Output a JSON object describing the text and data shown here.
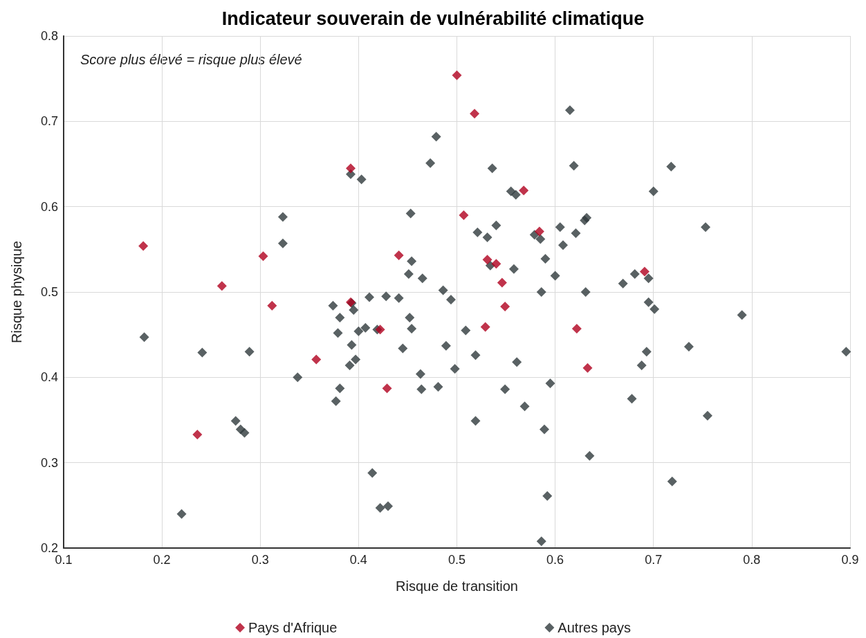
{
  "chart_data": {
    "type": "scatter",
    "title": "Indicateur souverain de vulnérabilité climatique",
    "xlabel": "Risque de transition",
    "ylabel": "Risque physique",
    "annotations": [
      "Score plus élevé = risque plus élevé"
    ],
    "xlim": [
      0.1,
      0.9
    ],
    "xticks": [
      0.1,
      0.2,
      0.3,
      0.4,
      0.5,
      0.6,
      0.7,
      0.8,
      0.9
    ],
    "ylim": [
      0.2,
      0.8
    ],
    "yticks": [
      0.2,
      0.3,
      0.4,
      0.5,
      0.6,
      0.7,
      0.8
    ],
    "grid": true,
    "legend": "bottom",
    "marker": "diamond",
    "series": [
      {
        "name": "Pays d'Afrique",
        "color": "#b0001e",
        "x": [
          0.181,
          0.261,
          0.303,
          0.312,
          0.236,
          0.357,
          0.392,
          0.392,
          0.422,
          0.429,
          0.441,
          0.5,
          0.518,
          0.507,
          0.568,
          0.584,
          0.531,
          0.54,
          0.546,
          0.549,
          0.529,
          0.622,
          0.633,
          0.691
        ],
        "values": [
          0.554,
          0.507,
          0.542,
          0.484,
          0.333,
          0.421,
          0.645,
          0.488,
          0.456,
          0.387,
          0.543,
          0.754,
          0.709,
          0.59,
          0.619,
          0.571,
          0.538,
          0.533,
          0.511,
          0.483,
          0.459,
          0.457,
          0.411,
          0.524
        ]
      },
      {
        "name": "Autres pays",
        "color": "#2f3a3c",
        "x": [
          0.182,
          0.22,
          0.241,
          0.289,
          0.275,
          0.28,
          0.284,
          0.338,
          0.323,
          0.323,
          0.374,
          0.377,
          0.379,
          0.381,
          0.381,
          0.392,
          0.403,
          0.393,
          0.395,
          0.393,
          0.391,
          0.397,
          0.4,
          0.407,
          0.411,
          0.419,
          0.414,
          0.422,
          0.43,
          0.428,
          0.441,
          0.445,
          0.453,
          0.451,
          0.454,
          0.452,
          0.454,
          0.463,
          0.464,
          0.465,
          0.473,
          0.479,
          0.481,
          0.486,
          0.489,
          0.494,
          0.498,
          0.509,
          0.519,
          0.519,
          0.521,
          0.531,
          0.534,
          0.536,
          0.54,
          0.549,
          0.555,
          0.558,
          0.56,
          0.561,
          0.569,
          0.579,
          0.585,
          0.586,
          0.586,
          0.589,
          0.59,
          0.592,
          0.595,
          0.6,
          0.605,
          0.608,
          0.615,
          0.619,
          0.621,
          0.63,
          0.632,
          0.631,
          0.635,
          0.669,
          0.678,
          0.681,
          0.688,
          0.693,
          0.695,
          0.695,
          0.7,
          0.701,
          0.718,
          0.719,
          0.736,
          0.753,
          0.755,
          0.79,
          0.896
        ],
        "values": [
          0.447,
          0.24,
          0.429,
          0.43,
          0.349,
          0.339,
          0.335,
          0.4,
          0.588,
          0.557,
          0.484,
          0.372,
          0.452,
          0.47,
          0.387,
          0.638,
          0.632,
          0.487,
          0.479,
          0.438,
          0.414,
          0.421,
          0.454,
          0.458,
          0.494,
          0.456,
          0.288,
          0.247,
          0.249,
          0.495,
          0.493,
          0.434,
          0.592,
          0.521,
          0.536,
          0.47,
          0.457,
          0.404,
          0.386,
          0.516,
          0.651,
          0.682,
          0.389,
          0.502,
          0.437,
          0.491,
          0.41,
          0.455,
          0.426,
          0.349,
          0.57,
          0.564,
          0.531,
          0.645,
          0.578,
          0.386,
          0.618,
          0.527,
          0.614,
          0.418,
          0.366,
          0.567,
          0.562,
          0.5,
          0.208,
          0.339,
          0.539,
          0.261,
          0.393,
          0.519,
          0.576,
          0.555,
          0.713,
          0.648,
          0.569,
          0.584,
          0.587,
          0.5,
          0.308,
          0.51,
          0.375,
          0.521,
          0.414,
          0.43,
          0.516,
          0.488,
          0.618,
          0.48,
          0.647,
          0.278,
          0.436,
          0.576,
          0.355,
          0.473,
          0.43
        ]
      }
    ]
  }
}
